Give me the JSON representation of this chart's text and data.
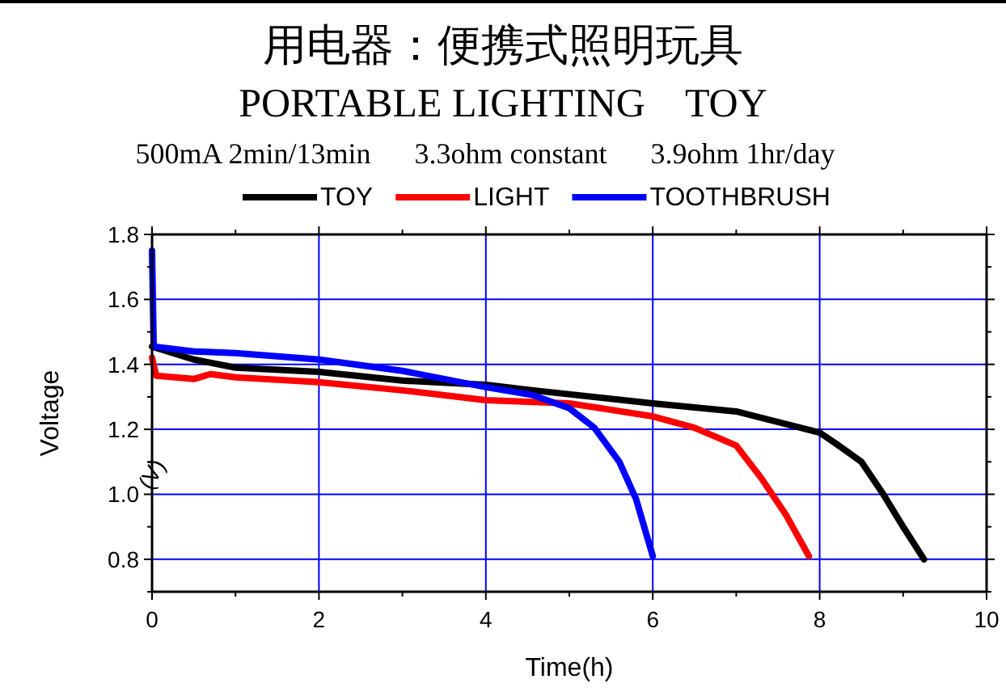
{
  "chart_data": {
    "type": "line",
    "title": "用电器：便携式照明玩具",
    "subtitle": "PORTABLE LIGHTING    TOY",
    "annotations": [
      "500mA 2min/13min      3.3ohm constant      3.9ohm 1hr/day",
      "(V)"
    ],
    "xlabel": "Time(h)",
    "ylabel": "Voltage",
    "xlim": [
      0,
      10
    ],
    "ylim": [
      0.7,
      1.8
    ],
    "xticks": [
      0,
      2,
      4,
      6,
      8,
      10
    ],
    "yticks": [
      0.8,
      {
        "value": 1,
        "label": "1.0"
      },
      1.2,
      1.4,
      1.6,
      1.8
    ],
    "grid": true,
    "legend": "top",
    "marker": "none",
    "line_style": "solid",
    "series": [
      {
        "name": "TOY",
        "color": "#000000",
        "x": [
          0,
          0.5,
          1,
          2,
          3,
          4,
          4.57,
          6,
          7,
          8,
          8.2,
          8.5,
          8.75,
          9,
          9.25
        ],
        "values": [
          1.455,
          1.415,
          1.39,
          1.377,
          1.35,
          1.337,
          1.32,
          1.28,
          1.255,
          1.19,
          1.155,
          1.1,
          1.005,
          0.9,
          0.8
        ]
      },
      {
        "name": "LIGHT",
        "color": "#ff0000",
        "x": [
          0,
          0.05,
          0.5,
          0.7,
          1,
          2,
          3,
          4,
          5,
          6,
          6.5,
          7,
          7.3,
          7.6,
          7.87
        ],
        "values": [
          1.42,
          1.365,
          1.355,
          1.37,
          1.36,
          1.345,
          1.32,
          1.29,
          1.28,
          1.24,
          1.205,
          1.15,
          1.05,
          0.935,
          0.81
        ]
      },
      {
        "name": "TOOTHBRUSH",
        "color": "#0000ff",
        "x": [
          0,
          0.02,
          0.5,
          1,
          2,
          3,
          4,
          4.57,
          5,
          5.3,
          5.6,
          5.8,
          6
        ],
        "values": [
          1.75,
          1.455,
          1.44,
          1.435,
          1.415,
          1.38,
          1.33,
          1.305,
          1.265,
          1.205,
          1.1,
          0.985,
          0.81
        ]
      }
    ]
  }
}
